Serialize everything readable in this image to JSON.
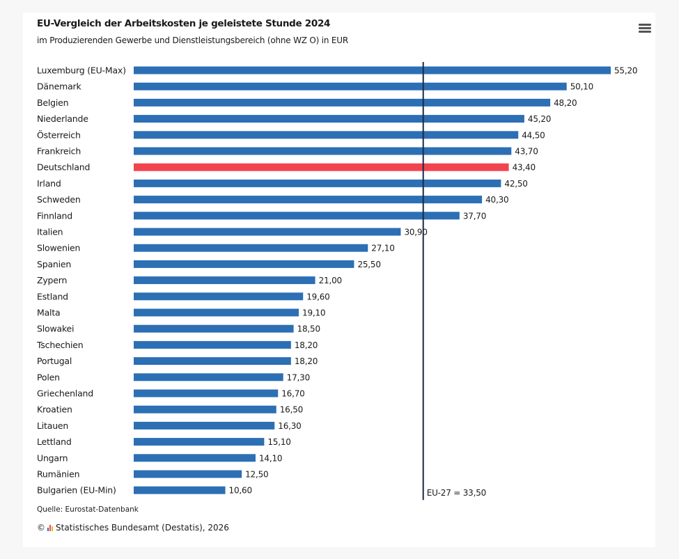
{
  "header": {
    "title": "EU-Vergleich der Arbeitskosten je geleistete Stunde 2024",
    "subtitle": "im Produzierenden Gewerbe und Dienstleistungsbereich (ohne WZ O) in EUR"
  },
  "menu_icon": "hamburger-menu-icon",
  "footer": {
    "source": "Quelle: Eurostat-Datenbank",
    "copyright_symbol": "©",
    "copyright": "Statistisches Bundesamt (Destatis), 2026"
  },
  "colors": {
    "bar": "#2c6fb4",
    "highlight": "#f2444f",
    "reference_line": "#1b2a44"
  },
  "chart_data": {
    "type": "bar",
    "orientation": "horizontal",
    "categories": [
      "Luxemburg (EU-Max)",
      "Dänemark",
      "Belgien",
      "Niederlande",
      "Österreich",
      "Frankreich",
      "Deutschland",
      "Irland",
      "Schweden",
      "Finnland",
      "Italien",
      "Slowenien",
      "Spanien",
      "Zypern",
      "Estland",
      "Malta",
      "Slowakei",
      "Tschechien",
      "Portugal",
      "Polen",
      "Griechenland",
      "Kroatien",
      "Litauen",
      "Lettland",
      "Ungarn",
      "Rumänien",
      "Bulgarien (EU-Min)"
    ],
    "values": [
      55.2,
      50.1,
      48.2,
      45.2,
      44.5,
      43.7,
      43.4,
      42.5,
      40.3,
      37.7,
      30.9,
      27.1,
      25.5,
      21.0,
      19.6,
      19.1,
      18.5,
      18.2,
      18.2,
      17.3,
      16.7,
      16.5,
      16.3,
      15.1,
      14.1,
      12.5,
      10.6
    ],
    "value_labels": [
      "55,20",
      "50,10",
      "48,20",
      "45,20",
      "44,50",
      "43,70",
      "43,40",
      "42,50",
      "40,30",
      "37,70",
      "30,90",
      "27,10",
      "25,50",
      "21,00",
      "19,60",
      "19,10",
      "18,50",
      "18,20",
      "18,20",
      "17,30",
      "16,70",
      "16,50",
      "16,30",
      "15,10",
      "14,10",
      "12,50",
      "10,60"
    ],
    "highlight_category": "Deutschland",
    "reference_line": {
      "value": 33.5,
      "label": "EU-27 = 33,50"
    },
    "xlim": [
      0,
      55.2
    ],
    "grid": false,
    "legend": "none"
  }
}
